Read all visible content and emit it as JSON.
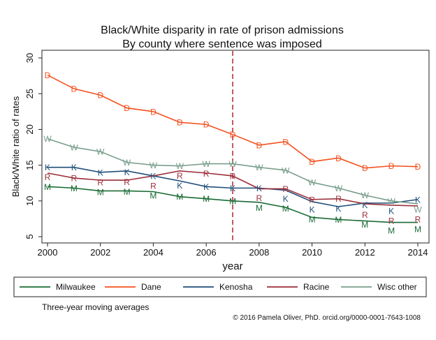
{
  "chart_data": {
    "type": "line",
    "title": "Black/White disparity in rate of prison admissions",
    "subtitle": "By county where sentence was imposed",
    "xlabel": "year",
    "ylabel": "Black/White ratio of rates",
    "xlim": [
      2000,
      2014
    ],
    "ylim": [
      5,
      30
    ],
    "xticks": [
      2000,
      2002,
      2004,
      2006,
      2008,
      2010,
      2012,
      2014
    ],
    "yticks": [
      5,
      10,
      15,
      20,
      25,
      30
    ],
    "grid": false,
    "legend_position": "bottom",
    "reference_line": {
      "x": 2007,
      "style": "dashed",
      "color": "#b22234"
    },
    "x": [
      2000,
      2001,
      2002,
      2003,
      2004,
      2005,
      2006,
      2007,
      2008,
      2009,
      2010,
      2011,
      2012,
      2013,
      2014
    ],
    "series": [
      {
        "name": "Milwaukee",
        "marker": "M",
        "color": "#1a6b35",
        "values": [
          12.0,
          11.8,
          11.4,
          11.4,
          11.3,
          10.6,
          10.3,
          10.0,
          9.8,
          9.1,
          7.7,
          7.4,
          7.2,
          7.0,
          7.0
        ]
      },
      {
        "name": "Dane",
        "marker": "D",
        "color": "#f4511e",
        "values": [
          27.6,
          25.7,
          24.8,
          23.0,
          22.5,
          21.0,
          20.7,
          19.3,
          17.8,
          18.3,
          15.5,
          16.0,
          14.6,
          14.9,
          14.8
        ]
      },
      {
        "name": "Kenosha",
        "marker": "K",
        "color": "#1f4e79",
        "values": [
          14.7,
          14.7,
          14.0,
          14.2,
          13.5,
          12.8,
          12.0,
          11.8,
          11.8,
          11.5,
          9.9,
          9.2,
          9.7,
          9.7,
          10.2
        ]
      },
      {
        "name": "Racine",
        "marker": "R",
        "color": "#9b2f3a",
        "values": [
          13.9,
          13.2,
          12.9,
          12.9,
          13.5,
          14.2,
          13.9,
          13.5,
          11.7,
          11.7,
          10.2,
          10.3,
          9.6,
          9.4,
          9.3
        ]
      },
      {
        "name": "Wisc other",
        "marker": "W",
        "color": "#7a9e8c",
        "values": [
          18.7,
          17.5,
          16.9,
          15.4,
          15.0,
          14.9,
          15.2,
          15.2,
          14.7,
          14.3,
          12.6,
          11.8,
          10.8,
          10.0,
          9.6
        ]
      }
    ],
    "note": "Three-year moving averages",
    "credit": "© 2016 Pamela Oliver, PhD.  orcid.org/0000-0001-7643-1008"
  }
}
